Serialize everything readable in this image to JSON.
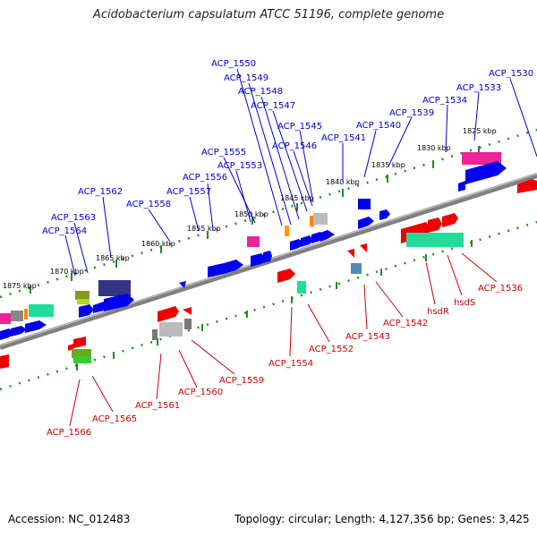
{
  "title": "Acidobacterium capsulatum ATCC 51196, complete genome",
  "footer": {
    "accession": "Accession: NC_012483",
    "summary": "Topology: circular; Length: 4,127,356 bp; Genes: 3,425"
  },
  "colors": {
    "top_label": "#0000cc",
    "bottom_label": "#cc0000",
    "ruler_dots": "#228b22",
    "backbone": "#808080"
  },
  "kbp_ticks": [
    "1875 kbp",
    "1870 kbp",
    "1865 kbp",
    "1860 kbp",
    "1855 kbp",
    "1850 kbp",
    "1845 kbp",
    "1840 kbp",
    "1835 kbp",
    "1830 kbp",
    "1825 kbp"
  ],
  "top_labels": [
    "ACP_1530",
    "ACP_1533",
    "ACP_1534",
    "ACP_1539",
    "ACP_1540",
    "ACP_1541",
    "ACP_1545",
    "ACP_1546",
    "ACP_1547",
    "ACP_1548",
    "ACP_1549",
    "ACP_1550",
    "ACP_1553",
    "ACP_1555",
    "ACP_1556",
    "ACP_1557",
    "ACP_1558",
    "ACP_1562",
    "ACP_1563",
    "ACP_1564"
  ],
  "bottom_labels": [
    "ACP_1536",
    "hsdS",
    "hsdR",
    "ACP_1542",
    "ACP_1543",
    "ACP_1552",
    "ACP_1554",
    "ACP_1559",
    "ACP_1560",
    "ACP_1561",
    "ACP_1565",
    "ACP_1566"
  ]
}
